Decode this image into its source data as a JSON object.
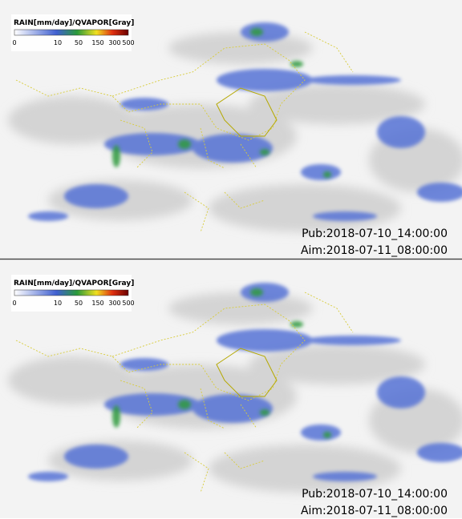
{
  "panels": [
    {
      "legend": {
        "title": "RAIN[mm/day]/QVAPOR[Gray]",
        "ticks": [
          "0",
          "10",
          "50",
          "150",
          "300",
          "500"
        ]
      },
      "pub": "Pub:2018-07-10_14:00:00",
      "aim": "Aim:2018-07-11_08:00:00"
    },
    {
      "legend": {
        "title": "RAIN[mm/day]/QVAPOR[Gray]",
        "ticks": [
          "0",
          "10",
          "50",
          "150",
          "300",
          "500"
        ]
      },
      "pub": "Pub:2018-07-10_14:00:00",
      "aim": "Aim:2018-07-11_08:00:00"
    }
  ]
}
